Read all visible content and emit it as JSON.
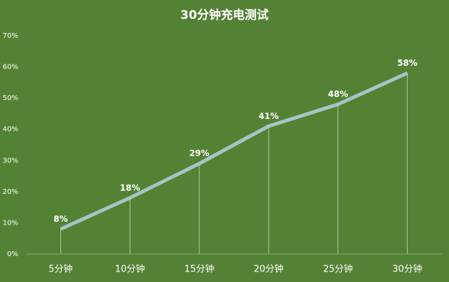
{
  "chart_data": {
    "type": "line",
    "title": "30分钟充电测试",
    "categories": [
      "5分钟",
      "10分钟",
      "15分钟",
      "20分钟",
      "25分钟",
      "30分钟"
    ],
    "values": [
      8,
      18,
      29,
      41,
      48,
      58
    ],
    "value_labels": [
      "8%",
      "18%",
      "29%",
      "41%",
      "48%",
      "58%"
    ],
    "color": "#9dc3e6",
    "ylim": [
      0,
      70
    ],
    "yticks": [
      {
        "value": 0,
        "label": "0%"
      },
      {
        "value": 10,
        "label": "10%"
      },
      {
        "value": 20,
        "label": "20%"
      },
      {
        "value": 30,
        "label": "30%"
      },
      {
        "value": 40,
        "label": "40%"
      },
      {
        "value": 50,
        "label": "50%"
      },
      {
        "value": 60,
        "label": "60%"
      },
      {
        "value": 70,
        "label": "70%"
      }
    ],
    "grid": false,
    "drop_lines": true
  }
}
